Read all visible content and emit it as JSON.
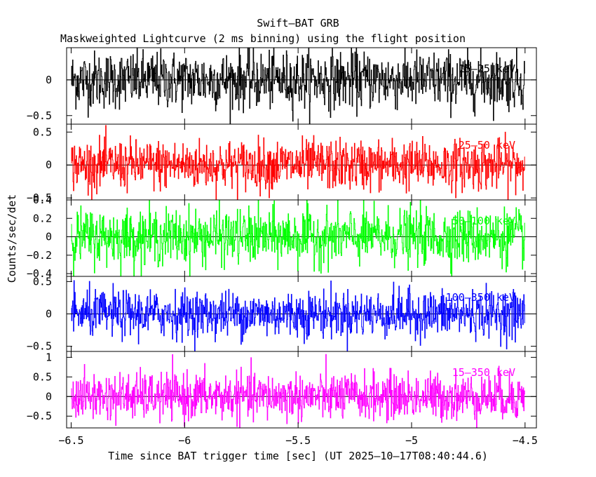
{
  "chart_data": {
    "type": "line",
    "title": "Swift—BAT GRB",
    "subtitle": "Maskweighted Lightcurve (2 ms binning) using the flight position",
    "xlabel": "Time since BAT trigger time [sec] (UT 2025—10—17T08:40:44.6)",
    "ylabel": "Counts/sec/det",
    "xlim": [
      -6.52,
      -4.45
    ],
    "x_ticks": [
      {
        "value": -6.5,
        "label": "−6.5"
      },
      {
        "value": -6,
        "label": "−6"
      },
      {
        "value": -5.5,
        "label": "−5.5"
      },
      {
        "value": -5,
        "label": "−5"
      },
      {
        "value": -4.5,
        "label": "−4.5"
      }
    ],
    "x_start": -6.5,
    "x_end": -4.5,
    "bin_width": 0.002,
    "panels": [
      {
        "name": "15—25 keV",
        "color": "#000000",
        "ylim": [
          -0.62,
          0.45
        ],
        "amplitude": 0.2,
        "y_ticks": [
          {
            "value": 0,
            "label": "0"
          },
          {
            "value": -0.5,
            "label": "−0.5"
          }
        ]
      },
      {
        "name": "25—50 keV",
        "color": "#ff0000",
        "ylim": [
          -0.53,
          0.62
        ],
        "amplitude": 0.19,
        "y_ticks": [
          {
            "value": 0.5,
            "label": "0.5"
          },
          {
            "value": 0,
            "label": "0"
          },
          {
            "value": -0.5,
            "label": "−0.5"
          }
        ]
      },
      {
        "name": "50—100 keV",
        "color": "#00ff00",
        "ylim": [
          -0.43,
          0.4
        ],
        "amplitude": 0.15,
        "y_ticks": [
          {
            "value": 0.4,
            "label": "0.4"
          },
          {
            "value": 0.2,
            "label": "0.2"
          },
          {
            "value": 0,
            "label": "0"
          },
          {
            "value": -0.2,
            "label": "−0.2"
          },
          {
            "value": -0.4,
            "label": "−0.4"
          }
        ]
      },
      {
        "name": "100—350 keV",
        "color": "#0000ff",
        "ylim": [
          -0.58,
          0.58
        ],
        "amplitude": 0.18,
        "y_ticks": [
          {
            "value": 0.5,
            "label": "0.5"
          },
          {
            "value": 0,
            "label": "0"
          },
          {
            "value": -0.5,
            "label": "−0.5"
          }
        ]
      },
      {
        "name": "15—350 keV",
        "color": "#ff00ff",
        "ylim": [
          -0.8,
          1.15
        ],
        "amplitude": 0.3,
        "y_ticks": [
          {
            "value": 1,
            "label": "1"
          },
          {
            "value": 0.5,
            "label": "0.5"
          },
          {
            "value": 0,
            "label": "0"
          },
          {
            "value": -0.5,
            "label": "−0.5"
          }
        ]
      }
    ]
  }
}
